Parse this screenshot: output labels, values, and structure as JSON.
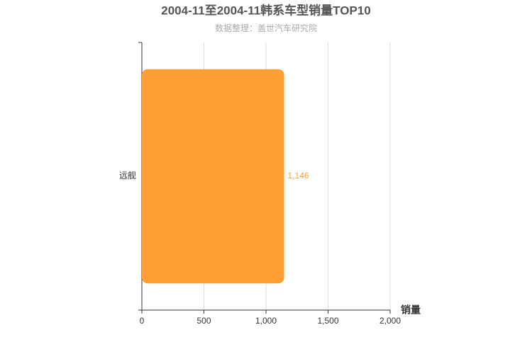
{
  "chart_data": {
    "type": "bar",
    "orientation": "horizontal",
    "title": "2004-11至2004-11韩系车型销量TOP10",
    "subtitle": "数据整理：盖世汽车研究院",
    "x_label": "销量",
    "categories": [
      "远舰"
    ],
    "values": [
      1146
    ],
    "value_labels": [
      "1,146"
    ],
    "color": "#ff9e35",
    "xlim": [
      0,
      2000
    ],
    "xticks": [
      0,
      500,
      {
        "value": 1000,
        "label": "1,000"
      },
      {
        "value": 1500,
        "label": "1,500"
      },
      {
        "value": 2000,
        "label": "2,000"
      }
    ],
    "grid": true
  }
}
